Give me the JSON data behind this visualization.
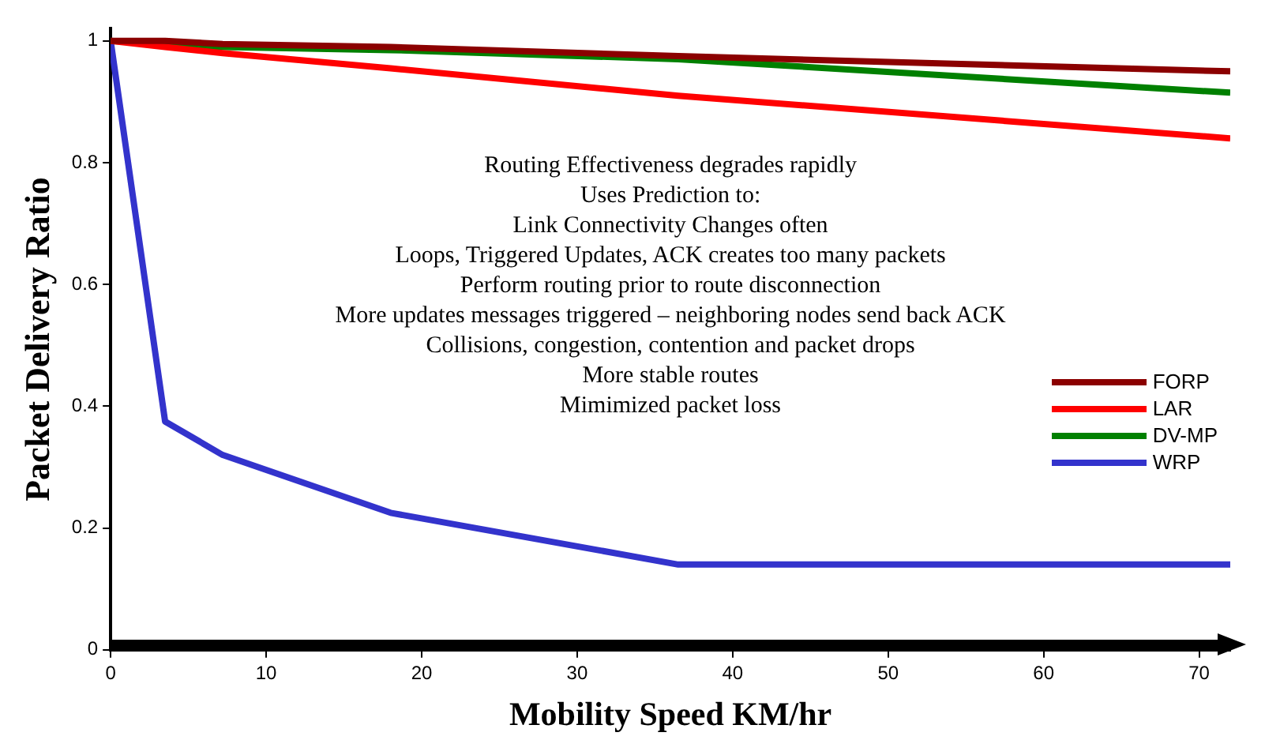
{
  "chart_data": {
    "type": "line",
    "xlabel": "Mobility Speed KM/hr",
    "ylabel": "Packet Delivery Ratio",
    "x": [
      0,
      3.5,
      7.2,
      18,
      36.5,
      72
    ],
    "series": [
      {
        "name": "FORP",
        "color": "#8b0000",
        "values": [
          1.0,
          1.0,
          0.995,
          0.99,
          0.975,
          0.95
        ]
      },
      {
        "name": "LAR",
        "color": "#ff0000",
        "values": [
          1.0,
          0.99,
          0.98,
          0.955,
          0.91,
          0.84
        ]
      },
      {
        "name": "DV-MP",
        "color": "#008000",
        "values": [
          1.0,
          0.995,
          0.99,
          0.985,
          0.97,
          0.915
        ]
      },
      {
        "name": "WRP",
        "color": "#3333cc",
        "values": [
          1.0,
          0.375,
          0.32,
          0.225,
          0.14,
          0.14
        ]
      }
    ],
    "xlim": [
      0,
      72
    ],
    "xticks": [
      0,
      10,
      20,
      30,
      40,
      50,
      60,
      70
    ],
    "ylim": [
      0,
      1.02
    ],
    "yticks": [
      0,
      0.2,
      0.4,
      0.6,
      0.8,
      1
    ],
    "grid": false,
    "legend": "bottom right",
    "line_style": "solid",
    "annotations": [
      "Routing Effectiveness degrades rapidly",
      "Uses Prediction to:",
      "Link Connectivity Changes often",
      "Loops, Triggered Updates, ACK creates too many packets",
      "Perform routing prior to route disconnection",
      "More updates messages triggered – neighboring nodes send back ACK",
      "Collisions, congestion, contention and packet drops",
      "More stable routes",
      "Mimimized packet loss"
    ]
  }
}
